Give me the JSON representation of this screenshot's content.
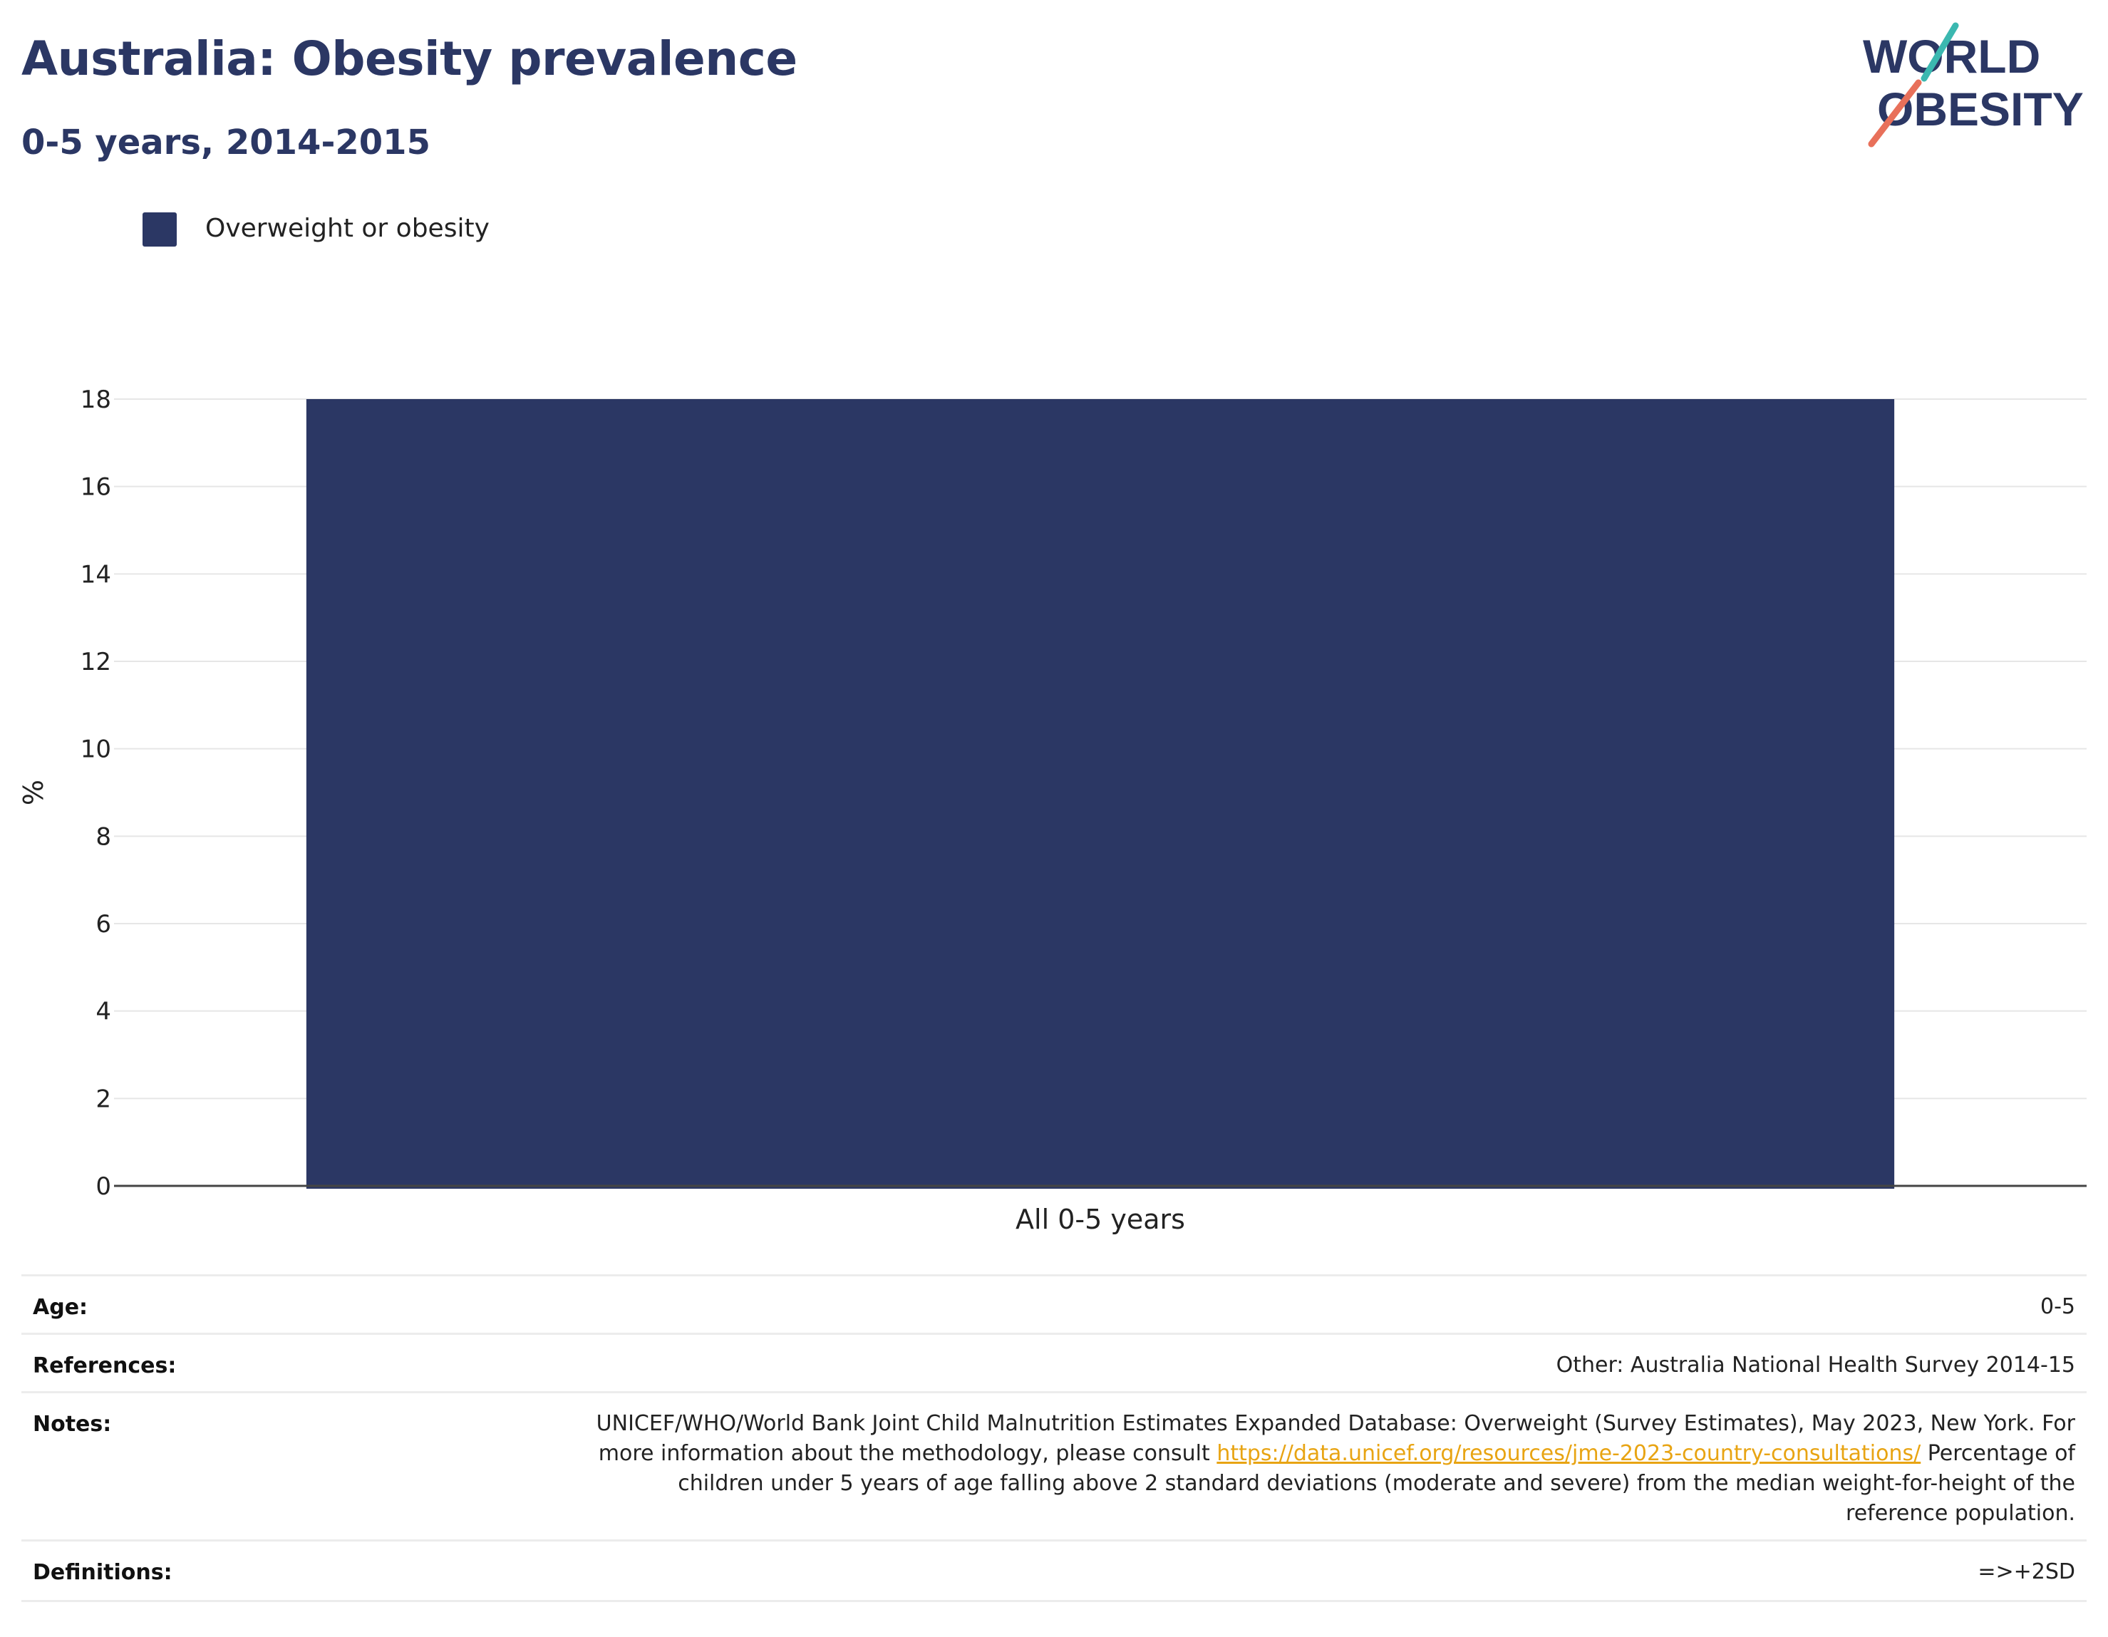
{
  "header": {
    "title": "Australia: Obesity prevalence",
    "subtitle": "0-5 years, 2014-2015"
  },
  "logo": {
    "line1": "WORLD",
    "line2": "OBESITY",
    "brand_color": "#2b3764",
    "accent_teal": "#3bb8b0",
    "accent_coral": "#e8705a"
  },
  "legend": {
    "items": [
      {
        "label": "Overweight or obesity",
        "color": "#2b3764"
      }
    ]
  },
  "chart_data": {
    "type": "bar",
    "title": "Australia: Obesity prevalence",
    "subtitle": "0-5 years, 2014-2015",
    "categories": [
      "All 0-5 years"
    ],
    "series": [
      {
        "name": "Overweight or obesity",
        "values": [
          18
        ],
        "color": "#2b3764"
      }
    ],
    "ylabel": "%",
    "xlabel": "",
    "ylim": [
      0,
      18
    ],
    "yticks": [
      0,
      2,
      4,
      6,
      8,
      10,
      12,
      14,
      16,
      18
    ],
    "grid": true,
    "legend_position": "top-left"
  },
  "info": {
    "age_label": "Age:",
    "age_value": "0-5",
    "references_label": "References:",
    "references_value": "Other: Australia National Health Survey 2014-15",
    "notes_label": "Notes:",
    "notes_text_1": "UNICEF/WHO/World Bank Joint Child Malnutrition Estimates Expanded Database: Overweight (Survey Estimates), May 2023, New York. For more information about the methodology, please consult",
    "notes_link": "https://data.unicef.org/resources/jme-2023-country-consultations/",
    "notes_text_2": "Percentage of children under 5 years of age falling above 2 standard deviations (moderate and severe) from the median weight-for-height of the reference population.",
    "definitions_label": "Definitions:",
    "definitions_value": "=>+2SD"
  }
}
